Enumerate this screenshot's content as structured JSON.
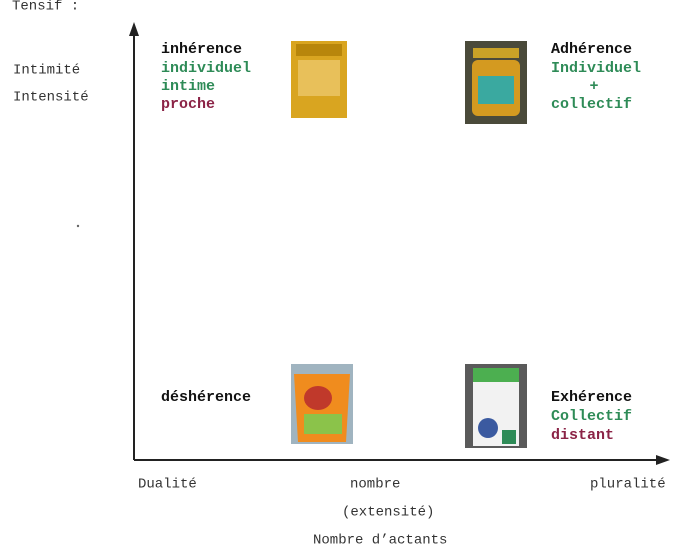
{
  "header": {
    "label": "Tensif :"
  },
  "y_axis_labels": [
    "Intimité",
    "Intensité"
  ],
  "quadrants": [
    {
      "title": "inhérence",
      "lines": [
        "individuel",
        "intime",
        "proche"
      ]
    },
    {
      "title": "Adhérence",
      "lines": [
        "Individuel",
        "+",
        "collectif"
      ]
    },
    {
      "title": "déshérence",
      "lines": []
    },
    {
      "title": "Exhérence",
      "lines": [
        "Collectif",
        "distant"
      ]
    }
  ],
  "x_axis": {
    "left": "Dualité",
    "center": "nombre",
    "center_sub": "(extensité)",
    "right": "pluralité",
    "title": "Nombre d’actants"
  }
}
